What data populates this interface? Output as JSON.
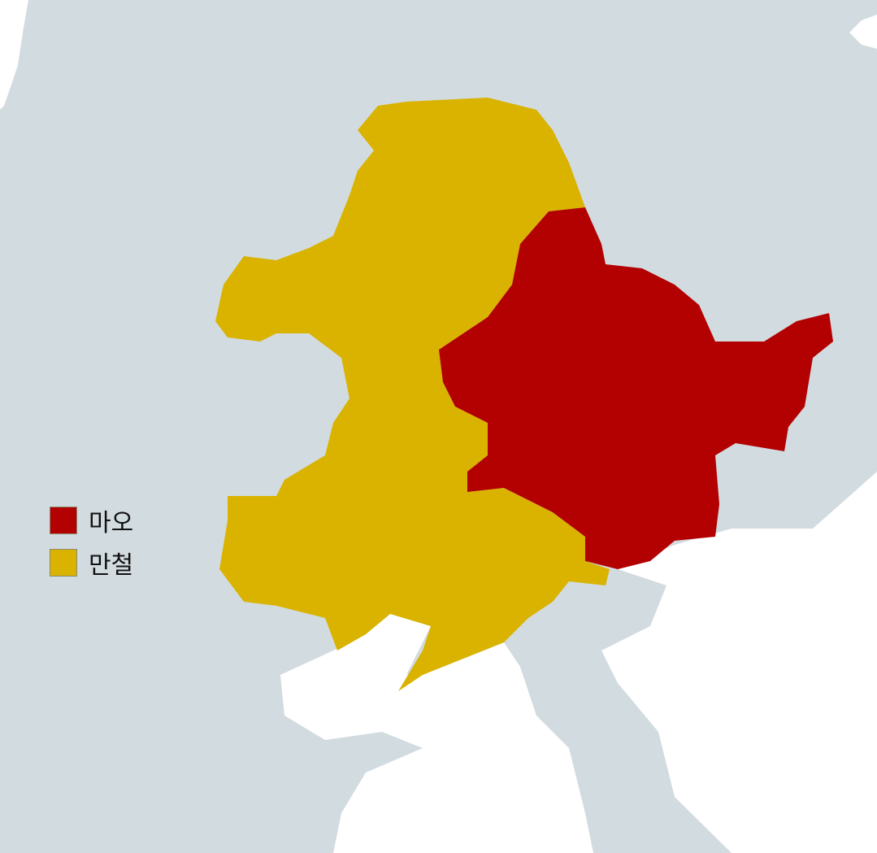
{
  "map": {
    "colors": {
      "land": "#d2dbdf",
      "sea": "#ffffff",
      "mao": "#b30000",
      "mantetsu": "#d9b300"
    }
  },
  "legend": {
    "items": [
      {
        "label": "마오",
        "color": "#b30000"
      },
      {
        "label": "만철",
        "color": "#d9b300"
      }
    ]
  }
}
